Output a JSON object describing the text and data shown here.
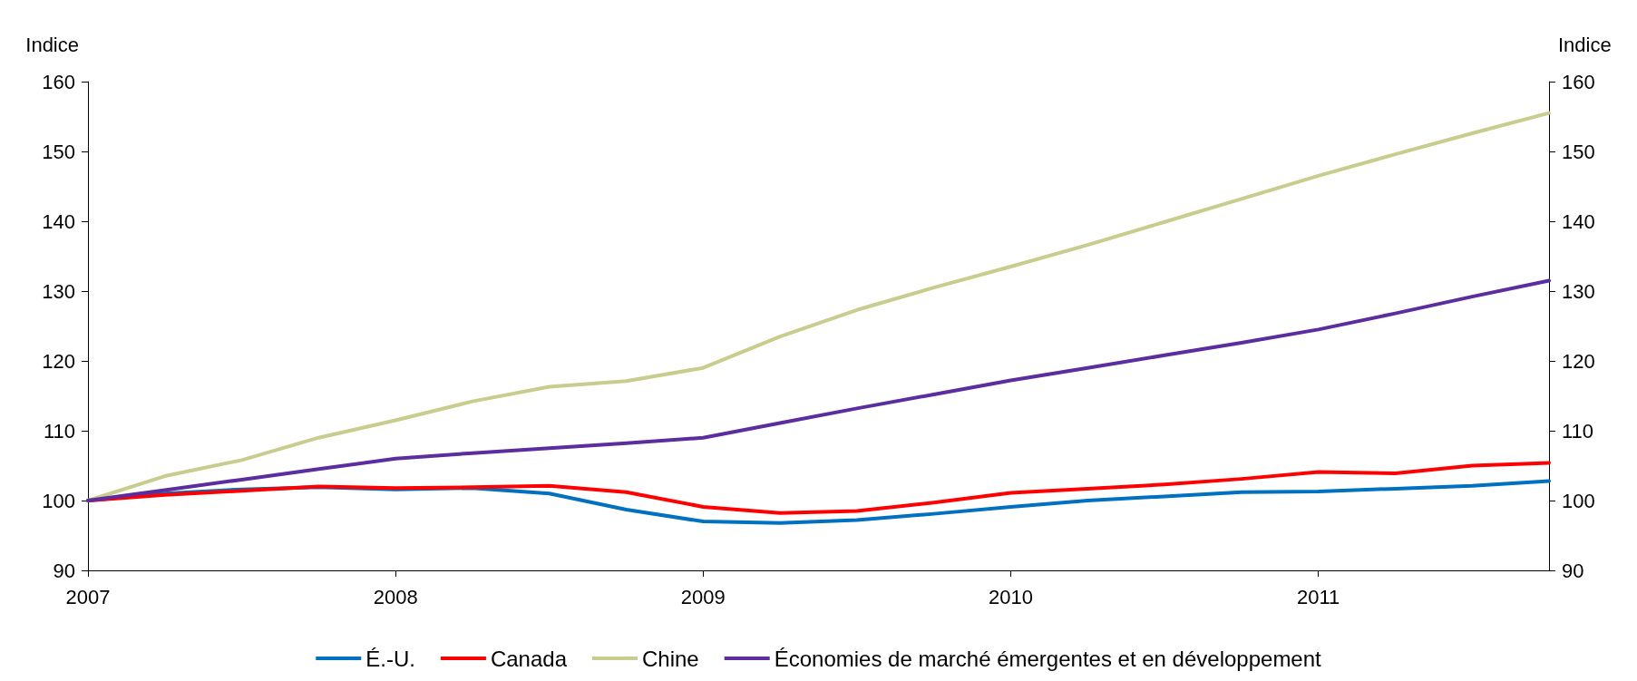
{
  "chart_data": {
    "type": "line",
    "ylabel": "Indice",
    "y2label": "Indice",
    "x": [
      2007,
      2007.25,
      2007.5,
      2007.75,
      2008,
      2008.25,
      2008.5,
      2008.75,
      2009,
      2009.25,
      2009.5,
      2009.75,
      2010,
      2010.25,
      2010.5,
      2010.75,
      2011,
      2011.25,
      2011.5,
      2011.75
    ],
    "xlim": [
      2007,
      2011.75
    ],
    "xticks": [
      2007,
      2008,
      2009,
      2010,
      2011
    ],
    "ylim": [
      90,
      160
    ],
    "yticks": [
      90,
      100,
      110,
      120,
      130,
      140,
      150,
      160
    ],
    "y2lim": [
      90,
      160
    ],
    "y2ticks": [
      90,
      100,
      110,
      120,
      130,
      140,
      150,
      160
    ],
    "series": [
      {
        "name": "É.-U.",
        "color": "#0070c0",
        "values": [
          100,
          101,
          101.6,
          101.9,
          101.6,
          101.8,
          101,
          98.7,
          97,
          96.8,
          97.2,
          98.1,
          99.1,
          100,
          100.6,
          101.2,
          101.3,
          101.7,
          102.1,
          102.8
        ]
      },
      {
        "name": "Canada",
        "color": "#ff0000",
        "values": [
          100,
          100.8,
          101.4,
          102,
          101.8,
          101.9,
          102.1,
          101.2,
          99.1,
          98.2,
          98.5,
          99.7,
          101.1,
          101.7,
          102.3,
          103.1,
          104.1,
          103.9,
          105,
          105.4
        ]
      },
      {
        "name": "Chine",
        "color": "#c8cc8c",
        "values": [
          100,
          103.5,
          105.8,
          109,
          111.5,
          114.2,
          116.3,
          117.1,
          119,
          123.5,
          127.3,
          130.5,
          133.5,
          136.6,
          139.9,
          143.2,
          146.5,
          149.6,
          152.6,
          155.5
        ]
      },
      {
        "name": "Économies de marché émergentes et en développement",
        "color": "#5b2d9e",
        "values": [
          100,
          101.5,
          103,
          104.5,
          106,
          106.8,
          107.5,
          108.2,
          109,
          111.1,
          113.2,
          115.2,
          117.2,
          119,
          120.8,
          122.6,
          124.5,
          126.8,
          129.2,
          131.5
        ]
      }
    ],
    "grid": false,
    "legend": "bottom",
    "marker": "none",
    "line_style": "solid"
  }
}
